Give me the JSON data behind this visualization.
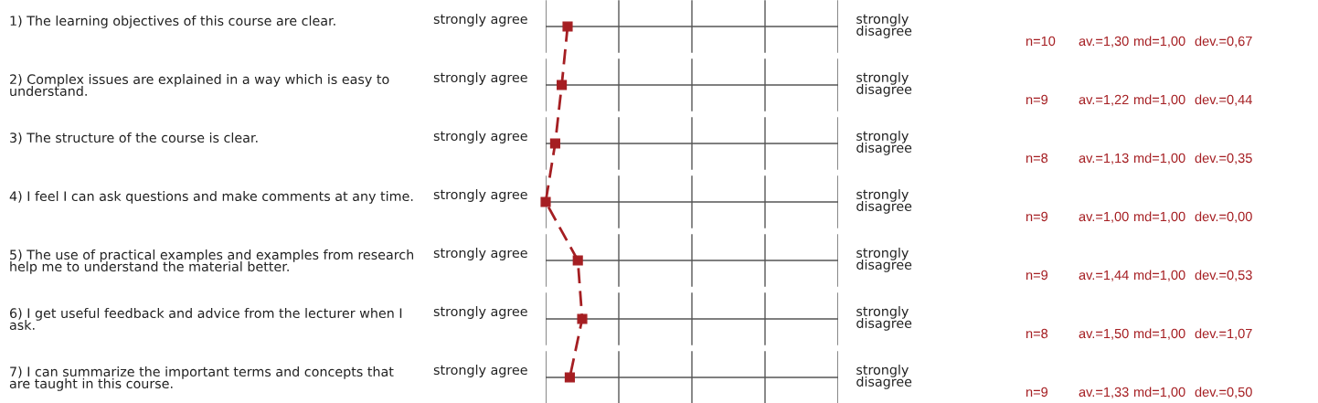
{
  "chart_data": {
    "type": "line",
    "orientation": "horizontal",
    "categories": [
      "1) The learning objectives of this course are clear.",
      "2) Complex issues are explained in a way which is easy to understand.",
      "3) The structure of the course is clear.",
      "4) I feel I can ask questions and make comments at any time.",
      "5) The use of practical examples and examples from research help me to understand the material better.",
      "6) I get useful feedback and advice from the lecturer when I ask.",
      "7) I can summarize the important terms and concepts that are taught in this course."
    ],
    "series": [
      {
        "color": "#a51e22",
        "values": [
          1.3,
          1.22,
          1.13,
          1.0,
          1.44,
          1.5,
          1.33
        ],
        "value_labels": [
          "av.=1,30",
          "av.=1,22",
          "av.=1,13",
          "av.=1,00",
          "av.=1,44",
          "av.=1,50",
          "av.=1,33"
        ]
      }
    ],
    "xlim": [
      1,
      5
    ],
    "grid": "y",
    "marker": "square",
    "line_style": "dashed",
    "annotations": [
      "strongly agree",
      "strongly disagree",
      "n=10",
      "md=1,00",
      "dev.=0,67",
      "strongly agree",
      "strongly disagree",
      "n=9",
      "md=1,00",
      "dev.=0,44",
      "strongly agree",
      "strongly disagree",
      "n=8",
      "md=1,00",
      "dev.=0,35",
      "strongly agree",
      "strongly disagree",
      "n=9",
      "md=1,00",
      "dev.=0,00",
      "strongly agree",
      "strongly disagree",
      "n=9",
      "md=1,00",
      "dev.=0,53",
      "strongly agree",
      "strongly disagree",
      "n=8",
      "md=1,00",
      "dev.=1,07",
      "strongly agree",
      "strongly disagree",
      "n=9",
      "md=1,00",
      "dev.=0,50"
    ]
  }
}
